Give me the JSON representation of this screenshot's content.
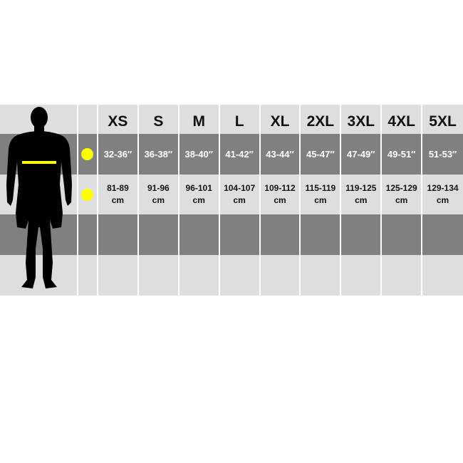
{
  "sizes": [
    "XS",
    "S",
    "M",
    "L",
    "XL",
    "2XL",
    "3XL",
    "4XL",
    "5XL"
  ],
  "chest_inches": [
    "32-36″",
    "36-38″",
    "38-40″",
    "41-42″",
    "43-44″",
    "45-47″",
    "47-49″",
    "49-51″",
    "51-53″"
  ],
  "chest_cm": [
    "81-89",
    "91-96",
    "96-101",
    "104-107",
    "109-112",
    "115-119",
    "119-125",
    "125-129",
    "129-134"
  ],
  "cm_unit": "cm",
  "colors": {
    "light_row": "#dedede",
    "dark_row": "#808080",
    "marker": "#ffff00",
    "silhouette": "#000000"
  },
  "icons": [
    "male-silhouette-icon",
    "yellow-dot-marker-icon"
  ]
}
